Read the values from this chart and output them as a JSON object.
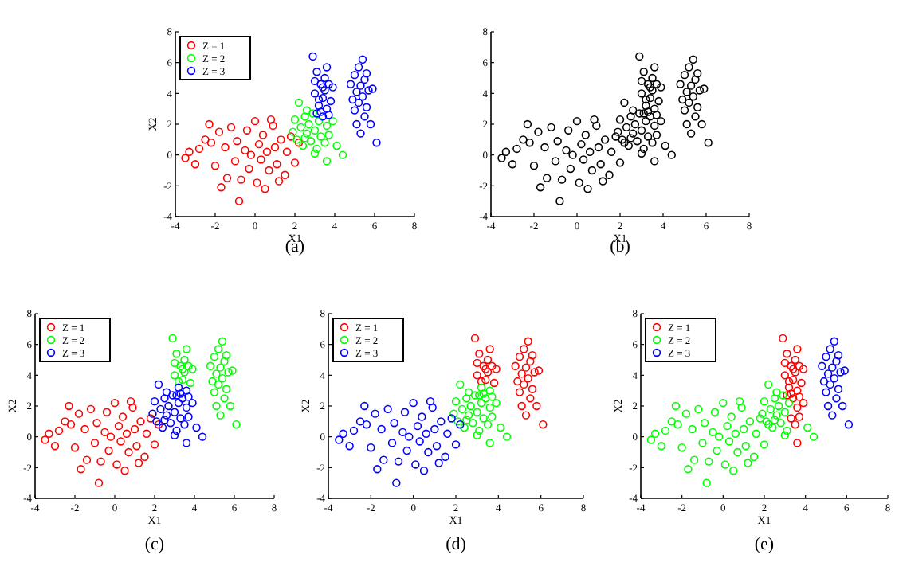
{
  "chart_data": [
    {
      "type": "scatter",
      "xlabel": "X1",
      "ylabel": "X2",
      "annotations": [
        "(a)"
      ],
      "xlim": [
        -4,
        8
      ],
      "ylim": [
        -4,
        8
      ],
      "xticks": [
        -4,
        -2,
        0,
        2,
        4,
        6,
        8
      ],
      "yticks": [
        -4,
        -2,
        0,
        2,
        4,
        6,
        8
      ],
      "legend": "top left",
      "marker": "circle",
      "series": [
        {
          "name": "Z = 1",
          "color": "#ff0000",
          "x": [
            -3.5,
            -3.3,
            -3.0,
            -2.8,
            -2.5,
            -2.3,
            -2.2,
            -2.0,
            -1.8,
            -1.7,
            -1.5,
            -1.4,
            -1.2,
            -1.0,
            -0.9,
            -0.8,
            -0.7,
            -0.5,
            -0.4,
            -0.3,
            -0.2,
            0.0,
            0.1,
            0.2,
            0.3,
            0.4,
            0.5,
            0.6,
            0.7,
            0.9,
            1.0,
            1.1,
            1.3,
            1.5,
            1.6,
            1.8,
            2.0,
            2.2,
            1.2,
            0.8
          ],
          "values": [
            -0.2,
            0.2,
            -0.6,
            0.4,
            1.0,
            2.0,
            0.8,
            -0.7,
            1.5,
            -2.1,
            0.5,
            -1.5,
            1.8,
            -0.4,
            0.9,
            -3.0,
            -1.6,
            0.3,
            1.6,
            -0.9,
            0.0,
            2.2,
            -1.8,
            0.7,
            -0.3,
            1.3,
            -2.2,
            0.2,
            -1.0,
            1.9,
            0.5,
            -0.6,
            1.0,
            -1.3,
            0.2,
            1.2,
            -0.5,
            0.8,
            -1.7,
            2.3
          ]
        },
        {
          "name": "Z = 2",
          "color": "#00ff00",
          "x": [
            1.9,
            2.0,
            2.1,
            2.2,
            2.3,
            2.4,
            2.5,
            2.6,
            2.7,
            2.8,
            2.9,
            3.0,
            3.1,
            3.2,
            3.3,
            3.9,
            3.5,
            3.6,
            3.7,
            2.6,
            3.0,
            3.6,
            4.1,
            4.4,
            2.5
          ],
          "values": [
            1.5,
            2.3,
            1.0,
            3.4,
            1.8,
            0.6,
            2.5,
            1.4,
            2.0,
            0.9,
            2.7,
            1.6,
            0.4,
            2.2,
            1.2,
            2.2,
            0.8,
            1.9,
            1.3,
            2.9,
            0.1,
            -0.4,
            0.6,
            0.0,
            1.1
          ]
        },
        {
          "name": "Z = 3",
          "color": "#0000ff",
          "x": [
            2.9,
            3.0,
            3.1,
            3.2,
            3.3,
            3.3,
            3.4,
            3.5,
            3.5,
            3.6,
            3.7,
            3.2,
            3.4,
            3.6,
            3.8,
            3.0,
            3.1,
            3.4,
            3.9,
            3.7,
            4.8,
            4.9,
            5.0,
            5.0,
            5.1,
            5.1,
            5.2,
            5.2,
            5.3,
            5.3,
            5.4,
            5.4,
            5.5,
            5.5,
            5.6,
            5.6,
            5.7,
            5.8,
            5.9,
            6.1
          ],
          "values": [
            6.4,
            4.0,
            5.4,
            3.2,
            4.6,
            2.8,
            3.7,
            5.0,
            4.2,
            3.0,
            4.6,
            3.6,
            2.5,
            5.7,
            3.5,
            4.8,
            2.7,
            4.4,
            4.4,
            2.6,
            4.6,
            3.6,
            2.9,
            5.2,
            4.1,
            2.0,
            5.7,
            3.4,
            4.5,
            1.4,
            6.2,
            3.8,
            2.5,
            4.9,
            3.1,
            5.3,
            4.2,
            2.0,
            4.3,
            0.8
          ]
        }
      ]
    },
    {
      "type": "scatter",
      "xlabel": "X1",
      "annotations": [
        "(b)"
      ],
      "xlim": [
        -4,
        8
      ],
      "ylim": [
        -4,
        8
      ],
      "xticks": [
        -4,
        -2,
        0,
        2,
        4,
        6,
        8
      ],
      "yticks": [
        -4,
        -2,
        0,
        2,
        4,
        6,
        8
      ],
      "marker": "circle",
      "series": [
        {
          "color": "#000000",
          "x": [
            -3.5,
            -3.3,
            -3.0,
            -2.8,
            -2.5,
            -2.3,
            -2.2,
            -2.0,
            -1.8,
            -1.7,
            -1.5,
            -1.4,
            -1.2,
            -1.0,
            -0.9,
            -0.8,
            -0.7,
            -0.5,
            -0.4,
            -0.3,
            -0.2,
            0.0,
            0.1,
            0.2,
            0.3,
            0.4,
            0.5,
            0.6,
            0.7,
            0.9,
            1.0,
            1.1,
            1.3,
            1.5,
            1.6,
            1.8,
            2.0,
            2.2,
            1.2,
            0.8,
            1.9,
            2.0,
            2.1,
            2.2,
            2.3,
            2.4,
            2.5,
            2.6,
            2.7,
            2.8,
            2.9,
            3.0,
            3.1,
            3.2,
            3.3,
            3.9,
            3.5,
            3.6,
            3.7,
            2.6,
            3.0,
            3.6,
            4.1,
            4.4,
            2.5,
            2.9,
            3.0,
            3.1,
            3.2,
            3.3,
            3.3,
            3.4,
            3.5,
            3.5,
            3.6,
            3.7,
            3.2,
            3.4,
            3.6,
            3.8,
            3.0,
            3.1,
            3.4,
            3.9,
            3.7,
            4.8,
            4.9,
            5.0,
            5.0,
            5.1,
            5.1,
            5.2,
            5.2,
            5.3,
            5.3,
            5.4,
            5.4,
            5.5,
            5.5,
            5.6,
            5.6,
            5.7,
            5.8,
            5.9,
            6.1
          ],
          "values": [
            -0.2,
            0.2,
            -0.6,
            0.4,
            1.0,
            2.0,
            0.8,
            -0.7,
            1.5,
            -2.1,
            0.5,
            -1.5,
            1.8,
            -0.4,
            0.9,
            -3.0,
            -1.6,
            0.3,
            1.6,
            -0.9,
            0.0,
            2.2,
            -1.8,
            0.7,
            -0.3,
            1.3,
            -2.2,
            0.2,
            -1.0,
            1.9,
            0.5,
            -0.6,
            1.0,
            -1.3,
            0.2,
            1.2,
            -0.5,
            0.8,
            -1.7,
            2.3,
            1.5,
            2.3,
            1.0,
            3.4,
            1.8,
            0.6,
            2.5,
            1.4,
            2.0,
            0.9,
            2.7,
            1.6,
            0.4,
            2.2,
            1.2,
            2.2,
            0.8,
            1.9,
            1.3,
            2.9,
            0.1,
            -0.4,
            0.6,
            0.0,
            1.1,
            6.4,
            4.0,
            5.4,
            3.2,
            4.6,
            2.8,
            3.7,
            5.0,
            4.2,
            3.0,
            4.6,
            3.6,
            2.5,
            5.7,
            3.5,
            4.8,
            2.7,
            4.4,
            4.4,
            2.6,
            4.6,
            3.6,
            2.9,
            5.2,
            4.1,
            2.0,
            5.7,
            3.4,
            4.5,
            1.4,
            6.2,
            3.8,
            2.5,
            4.9,
            3.1,
            5.3,
            4.2,
            2.0,
            4.3,
            0.8
          ]
        }
      ]
    },
    {
      "type": "scatter",
      "xlabel": "X1",
      "ylabel": "X2",
      "annotations": [
        "(c)"
      ],
      "xlim": [
        -4,
        8
      ],
      "ylim": [
        -4,
        8
      ],
      "xticks": [
        -4,
        -2,
        0,
        2,
        4,
        6,
        8
      ],
      "yticks": [
        -4,
        -2,
        0,
        2,
        4,
        6,
        8
      ],
      "legend": "top left",
      "marker": "circle",
      "series": [
        {
          "name": "Z = 1",
          "color": "#ff0000",
          "x": [
            -3.5,
            -3.3,
            -3.0,
            -2.8,
            -2.5,
            -2.3,
            -2.2,
            -2.0,
            -1.8,
            -1.7,
            -1.5,
            -1.4,
            -1.2,
            -1.0,
            -0.9,
            -0.8,
            -0.7,
            -0.5,
            -0.4,
            -0.3,
            -0.2,
            0.0,
            0.1,
            0.2,
            0.3,
            0.4,
            0.5,
            0.6,
            0.7,
            0.9,
            1.0,
            1.1,
            1.3,
            1.5,
            1.6,
            1.8,
            2.0,
            2.2,
            1.2,
            0.8
          ],
          "values": [
            -0.2,
            0.2,
            -0.6,
            0.4,
            1.0,
            2.0,
            0.8,
            -0.7,
            1.5,
            -2.1,
            0.5,
            -1.5,
            1.8,
            -0.4,
            0.9,
            -3.0,
            -1.6,
            0.3,
            1.6,
            -0.9,
            0.0,
            2.2,
            -1.8,
            0.7,
            -0.3,
            1.3,
            -2.2,
            0.2,
            -1.0,
            1.9,
            0.5,
            -0.6,
            1.0,
            -1.3,
            0.2,
            1.2,
            -0.5,
            0.8,
            -1.7,
            2.3
          ]
        },
        {
          "name": "Z = 2",
          "color": "#00ff00",
          "x": [
            2.9,
            3.0,
            3.1,
            3.3,
            3.4,
            3.5,
            3.5,
            3.7,
            3.2,
            3.6,
            3.8,
            3.0,
            3.4,
            3.9,
            4.8,
            4.9,
            5.0,
            5.0,
            5.1,
            5.1,
            5.2,
            5.2,
            5.3,
            5.3,
            5.4,
            5.4,
            5.5,
            5.5,
            5.6,
            5.6,
            5.7,
            5.8,
            5.9,
            6.1
          ],
          "values": [
            6.4,
            4.0,
            5.4,
            4.6,
            3.7,
            5.0,
            4.2,
            4.6,
            3.6,
            5.7,
            3.5,
            4.8,
            4.4,
            4.4,
            4.6,
            3.6,
            2.9,
            5.2,
            4.1,
            2.0,
            5.7,
            3.4,
            4.5,
            1.4,
            6.2,
            3.8,
            2.5,
            4.9,
            3.1,
            5.3,
            4.2,
            2.0,
            4.3,
            0.8
          ]
        },
        {
          "name": "Z = 3",
          "color": "#0000ff",
          "x": [
            1.9,
            2.0,
            2.1,
            2.2,
            2.3,
            2.4,
            2.5,
            2.6,
            2.7,
            2.8,
            2.9,
            3.0,
            3.1,
            3.2,
            3.3,
            3.9,
            3.5,
            3.6,
            3.7,
            2.6,
            3.0,
            3.6,
            4.1,
            4.4,
            2.5,
            3.2,
            3.3,
            3.6,
            3.4,
            3.1,
            3.7
          ],
          "values": [
            1.5,
            2.3,
            1.0,
            3.4,
            1.8,
            0.6,
            2.5,
            1.4,
            2.0,
            0.9,
            2.7,
            1.6,
            0.4,
            2.2,
            1.2,
            2.2,
            0.8,
            1.9,
            1.3,
            2.9,
            0.1,
            -0.4,
            0.6,
            0.0,
            1.1,
            3.2,
            2.8,
            3.0,
            2.5,
            2.7,
            2.6
          ]
        }
      ]
    },
    {
      "type": "scatter",
      "xlabel": "X1",
      "ylabel": "X2",
      "annotations": [
        "(d)"
      ],
      "xlim": [
        -4,
        8
      ],
      "ylim": [
        -4,
        8
      ],
      "xticks": [
        -4,
        -2,
        0,
        2,
        4,
        6,
        8
      ],
      "yticks": [
        -4,
        -2,
        0,
        2,
        4,
        6,
        8
      ],
      "legend": "top left",
      "marker": "circle",
      "series": [
        {
          "name": "Z = 1",
          "color": "#ff0000",
          "x": [
            2.9,
            3.0,
            3.1,
            3.3,
            3.4,
            3.5,
            3.5,
            3.7,
            3.2,
            3.6,
            3.8,
            3.0,
            3.4,
            3.9,
            4.8,
            4.9,
            5.0,
            5.0,
            5.1,
            5.1,
            5.2,
            5.2,
            5.3,
            5.3,
            5.4,
            5.4,
            5.5,
            5.5,
            5.6,
            5.6,
            5.7,
            5.8,
            5.9,
            6.1
          ],
          "values": [
            6.4,
            4.0,
            5.4,
            4.6,
            3.7,
            5.0,
            4.2,
            4.6,
            3.6,
            5.7,
            3.5,
            4.8,
            4.4,
            4.4,
            4.6,
            3.6,
            2.9,
            5.2,
            4.1,
            2.0,
            5.7,
            3.4,
            4.5,
            1.4,
            6.2,
            3.8,
            2.5,
            4.9,
            3.1,
            5.3,
            4.2,
            2.0,
            4.3,
            0.8
          ]
        },
        {
          "name": "Z = 2",
          "color": "#00ff00",
          "x": [
            1.9,
            2.0,
            2.1,
            2.2,
            2.3,
            2.4,
            2.5,
            2.6,
            2.7,
            2.8,
            2.9,
            3.0,
            3.1,
            3.2,
            3.3,
            3.9,
            3.5,
            3.6,
            3.7,
            2.6,
            3.0,
            3.6,
            4.1,
            4.4,
            2.5,
            3.2,
            3.3,
            3.6,
            3.4,
            3.1,
            3.7
          ],
          "values": [
            1.5,
            2.3,
            1.0,
            3.4,
            1.8,
            0.6,
            2.5,
            1.4,
            2.0,
            0.9,
            2.7,
            1.6,
            0.4,
            2.2,
            1.2,
            2.2,
            0.8,
            1.9,
            1.3,
            2.9,
            0.1,
            -0.4,
            0.6,
            0.0,
            1.1,
            3.2,
            2.8,
            3.0,
            2.5,
            2.7,
            2.6
          ]
        },
        {
          "name": "Z = 3",
          "color": "#0000ff",
          "x": [
            -3.5,
            -3.3,
            -3.0,
            -2.8,
            -2.5,
            -2.3,
            -2.2,
            -2.0,
            -1.8,
            -1.7,
            -1.5,
            -1.4,
            -1.2,
            -1.0,
            -0.9,
            -0.8,
            -0.7,
            -0.5,
            -0.4,
            -0.3,
            -0.2,
            0.0,
            0.1,
            0.2,
            0.3,
            0.4,
            0.5,
            0.6,
            0.7,
            0.9,
            1.0,
            1.1,
            1.3,
            1.5,
            1.6,
            1.8,
            2.0,
            2.2,
            1.2,
            0.8
          ],
          "values": [
            -0.2,
            0.2,
            -0.6,
            0.4,
            1.0,
            2.0,
            0.8,
            -0.7,
            1.5,
            -2.1,
            0.5,
            -1.5,
            1.8,
            -0.4,
            0.9,
            -3.0,
            -1.6,
            0.3,
            1.6,
            -0.9,
            0.0,
            2.2,
            -1.8,
            0.7,
            -0.3,
            1.3,
            -2.2,
            0.2,
            -1.0,
            1.9,
            0.5,
            -0.6,
            1.0,
            -1.3,
            0.2,
            1.2,
            -0.5,
            0.8,
            -1.7,
            2.3
          ]
        }
      ]
    },
    {
      "type": "scatter",
      "xlabel": "X1",
      "ylabel": "X2",
      "annotations": [
        "(e)"
      ],
      "xlim": [
        -4,
        8
      ],
      "ylim": [
        -4,
        8
      ],
      "xticks": [
        -4,
        -2,
        0,
        2,
        4,
        6,
        8
      ],
      "yticks": [
        -4,
        -2,
        0,
        2,
        4,
        6,
        8
      ],
      "legend": "top left",
      "marker": "circle",
      "series": [
        {
          "name": "Z = 1",
          "color": "#ff0000",
          "x": [
            2.9,
            3.0,
            3.1,
            3.2,
            3.3,
            3.3,
            3.4,
            3.5,
            3.5,
            3.6,
            3.7,
            3.2,
            3.4,
            3.6,
            3.8,
            3.0,
            3.1,
            3.4,
            3.9,
            3.7,
            3.3,
            3.9,
            3.5,
            3.6,
            3.7,
            3.6
          ],
          "values": [
            6.4,
            4.0,
            5.4,
            3.2,
            4.6,
            2.8,
            3.7,
            5.0,
            4.2,
            3.0,
            4.6,
            3.6,
            2.5,
            5.7,
            3.5,
            4.8,
            2.7,
            4.4,
            4.4,
            2.6,
            1.2,
            2.2,
            0.8,
            1.9,
            1.3,
            -0.4
          ]
        },
        {
          "name": "Z = 2",
          "color": "#00ff00",
          "x": [
            -3.5,
            -3.3,
            -3.0,
            -2.8,
            -2.5,
            -2.3,
            -2.2,
            -2.0,
            -1.8,
            -1.7,
            -1.5,
            -1.4,
            -1.2,
            -1.0,
            -0.9,
            -0.8,
            -0.7,
            -0.5,
            -0.4,
            -0.3,
            -0.2,
            0.0,
            0.1,
            0.2,
            0.3,
            0.4,
            0.5,
            0.6,
            0.7,
            0.9,
            1.0,
            1.1,
            1.3,
            1.5,
            1.6,
            1.8,
            2.0,
            2.2,
            1.2,
            0.8,
            1.9,
            2.0,
            2.1,
            2.2,
            2.3,
            2.4,
            2.5,
            2.6,
            2.7,
            2.8,
            2.9,
            3.0,
            3.1,
            3.2,
            2.6,
            3.0,
            4.1,
            4.4,
            2.5
          ],
          "values": [
            -0.2,
            0.2,
            -0.6,
            0.4,
            1.0,
            2.0,
            0.8,
            -0.7,
            1.5,
            -2.1,
            0.5,
            -1.5,
            1.8,
            -0.4,
            0.9,
            -3.0,
            -1.6,
            0.3,
            1.6,
            -0.9,
            0.0,
            2.2,
            -1.8,
            0.7,
            -0.3,
            1.3,
            -2.2,
            0.2,
            -1.0,
            1.9,
            0.5,
            -0.6,
            1.0,
            -1.3,
            0.2,
            1.2,
            -0.5,
            0.8,
            -1.7,
            2.3,
            1.5,
            2.3,
            1.0,
            3.4,
            1.8,
            0.6,
            2.5,
            1.4,
            2.0,
            0.9,
            2.7,
            1.6,
            0.4,
            2.2,
            2.9,
            0.1,
            0.6,
            0.0,
            1.1
          ]
        },
        {
          "name": "Z = 3",
          "color": "#0000ff",
          "x": [
            4.8,
            4.9,
            5.0,
            5.0,
            5.1,
            5.1,
            5.2,
            5.2,
            5.3,
            5.3,
            5.4,
            5.4,
            5.5,
            5.5,
            5.6,
            5.6,
            5.7,
            5.8,
            5.9,
            6.1
          ],
          "values": [
            4.6,
            3.6,
            2.9,
            5.2,
            4.1,
            2.0,
            5.7,
            3.4,
            4.5,
            1.4,
            6.2,
            3.8,
            2.5,
            4.9,
            3.1,
            5.3,
            4.2,
            2.0,
            4.3,
            0.8
          ]
        }
      ]
    }
  ]
}
